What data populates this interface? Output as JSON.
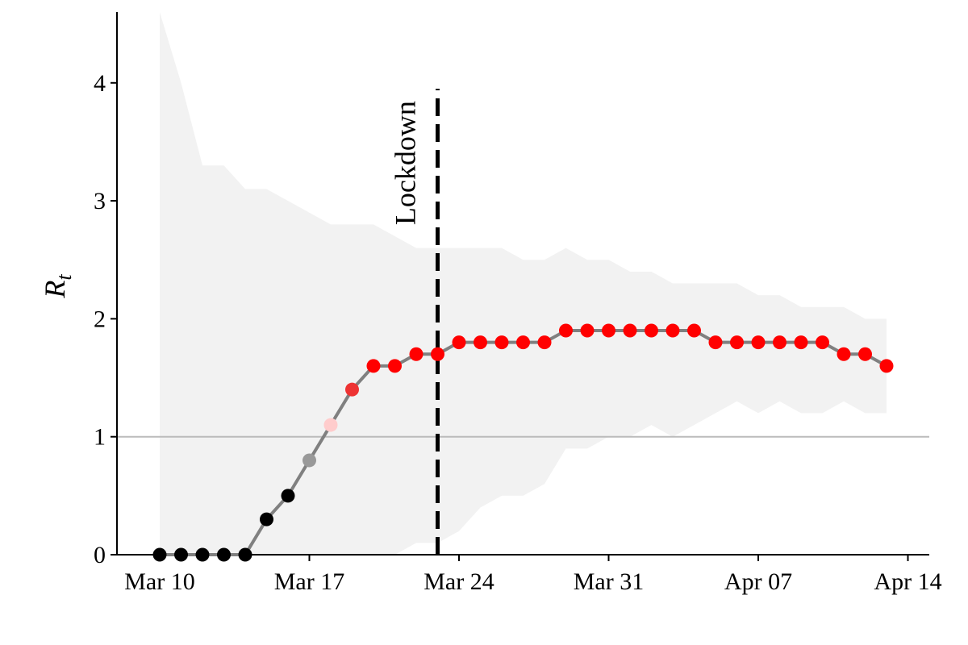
{
  "chart_data": {
    "type": "line",
    "ylabel": "R",
    "ylabel_subscript": "t",
    "x": [
      "Mar 10",
      "Mar 11",
      "Mar 12",
      "Mar 13",
      "Mar 14",
      "Mar 15",
      "Mar 16",
      "Mar 17",
      "Mar 18",
      "Mar 19",
      "Mar 20",
      "Mar 21",
      "Mar 22",
      "Mar 23",
      "Mar 24",
      "Mar 25",
      "Mar 26",
      "Mar 27",
      "Mar 28",
      "Mar 29",
      "Mar 30",
      "Mar 31",
      "Apr 01",
      "Apr 02",
      "Apr 03",
      "Apr 04",
      "Apr 05",
      "Apr 06",
      "Apr 07",
      "Apr 08",
      "Apr 09",
      "Apr 10",
      "Apr 11",
      "Apr 12",
      "Apr 13"
    ],
    "series": [
      {
        "color": "#808080",
        "values": [
          0,
          0,
          0,
          0,
          0,
          0.3,
          0.5,
          0.8,
          1.1,
          1.4,
          1.6,
          1.6,
          1.7,
          1.7,
          1.8,
          1.8,
          1.8,
          1.8,
          1.8,
          1.9,
          1.9,
          1.9,
          1.9,
          1.9,
          1.9,
          1.9,
          1.8,
          1.8,
          1.8,
          1.8,
          1.8,
          1.8,
          1.7,
          1.7,
          1.6
        ],
        "point_colors": [
          "#000000",
          "#000000",
          "#000000",
          "#000000",
          "#000000",
          "#000000",
          "#000000",
          "#999999",
          "#ffcccc",
          "#ee3333",
          "#ff0000",
          "#ff0000",
          "#ff0000",
          "#ff0000",
          "#ff0000",
          "#ff0000",
          "#ff0000",
          "#ff0000",
          "#ff0000",
          "#ff0000",
          "#ff0000",
          "#ff0000",
          "#ff0000",
          "#ff0000",
          "#ff0000",
          "#ff0000",
          "#ff0000",
          "#ff0000",
          "#ff0000",
          "#ff0000",
          "#ff0000",
          "#ff0000",
          "#ff0000",
          "#ff0000",
          "#ff0000"
        ]
      }
    ],
    "band": {
      "color": "#f2f2f2",
      "upper": [
        4.6,
        4.0,
        3.3,
        3.3,
        3.1,
        3.1,
        3.0,
        2.9,
        2.8,
        2.8,
        2.8,
        2.7,
        2.6,
        2.6,
        2.6,
        2.6,
        2.6,
        2.5,
        2.5,
        2.6,
        2.5,
        2.5,
        2.4,
        2.4,
        2.3,
        2.3,
        2.3,
        2.3,
        2.2,
        2.2,
        2.1,
        2.1,
        2.1,
        2.0,
        2.0
      ],
      "lower": [
        0,
        0,
        0,
        0,
        0,
        0,
        0,
        0,
        0,
        0,
        0,
        0,
        0.1,
        0.1,
        0.2,
        0.4,
        0.5,
        0.5,
        0.6,
        0.9,
        0.9,
        1.0,
        1.0,
        1.1,
        1.0,
        1.1,
        1.2,
        1.3,
        1.2,
        1.3,
        1.2,
        1.2,
        1.3,
        1.2,
        1.2
      ]
    },
    "hline": {
      "value": 1,
      "color": "#bbbbbb"
    },
    "vline": {
      "x": "Mar 23",
      "top": 3.95,
      "label": "Lockdown",
      "color": "#000000"
    },
    "xlim": [
      "Mar 8",
      "Apr 15"
    ],
    "xticks": [
      "Mar 10",
      "Mar 17",
      "Mar 24",
      "Mar 31",
      "Apr 07",
      "Apr 14"
    ],
    "ylim": [
      0,
      4.6
    ],
    "yticks": [
      0,
      1,
      2,
      3,
      4
    ]
  }
}
